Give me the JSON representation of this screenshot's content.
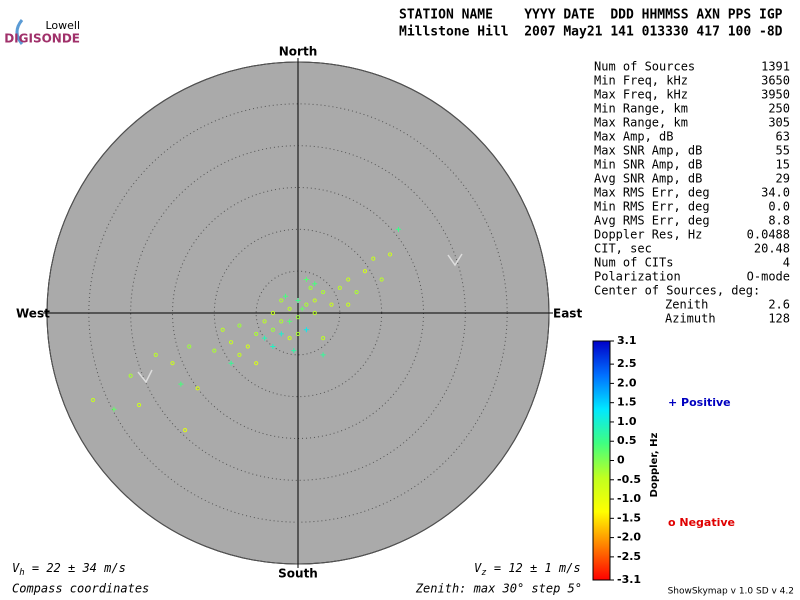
{
  "logo": {
    "top": "Lowell",
    "bottom": "DIGISONDE"
  },
  "header": {
    "line1": "STATION NAME    YYYY DATE  DDD HHMMSS AXN PPS IGP",
    "line2": "Millstone Hill  2007 May21 141 013330 417 100 -8D"
  },
  "stats": {
    "rows": [
      {
        "label": "Num of Sources",
        "value": "1391"
      },
      {
        "label": "Min Freq, kHz",
        "value": "3650"
      },
      {
        "label": "Max Freq, kHz",
        "value": "3950"
      },
      {
        "label": "Min Range, km",
        "value": "250"
      },
      {
        "label": "Max Range, km",
        "value": "305"
      },
      {
        "label": "Max Amp, dB",
        "value": "63"
      },
      {
        "label": "Max SNR Amp, dB",
        "value": "55"
      },
      {
        "label": "Min SNR Amp, dB",
        "value": "15"
      },
      {
        "label": "Avg SNR Amp, dB",
        "value": "29"
      },
      {
        "label": "Max RMS Err, deg",
        "value": "34.0"
      },
      {
        "label": "Min RMS Err, deg",
        "value": "0.0"
      },
      {
        "label": "Avg RMS Err, deg",
        "value": "8.8"
      },
      {
        "label": "Doppler Res, Hz",
        "value": "0.0488"
      },
      {
        "label": "CIT, sec",
        "value": "20.48"
      },
      {
        "label": "Num of CITs",
        "value": "4"
      },
      {
        "label": "Polarization",
        "value": "O-mode"
      },
      {
        "label": "Center of Sources, deg:"
      },
      {
        "label": "Zenith",
        "value": "2.6",
        "indent": true
      },
      {
        "label": "Azimuth",
        "value": "128",
        "indent": true
      }
    ]
  },
  "footer": {
    "vh_symbol": "V",
    "vh_sub": "h",
    "vh_text": " = 22 ± 34 m/s",
    "vz_symbol": "V",
    "vz_sub": "z",
    "vz_text": " = 12 ± 1 m/s",
    "left": "Compass coordinates",
    "zenith": "Zenith: max 30°  step 5°",
    "version": "ShowSkymap v 1.0  SD v 4.2"
  },
  "chart_data": {
    "type": "skymap",
    "directions": {
      "north": "North",
      "south": "South",
      "east": "East",
      "west": "West"
    },
    "rlim": [
      0,
      30
    ],
    "rticks": [
      5,
      10,
      15,
      20,
      25,
      30
    ],
    "colorbar": {
      "label": "Doppler, Hz",
      "lim": [
        -3.1,
        3.1
      ],
      "colors": [
        "#ff0000",
        "#ff8000",
        "#ffff00",
        "#c0ff20",
        "#40ff80",
        "#00e8ff",
        "#0070ff",
        "#0000c8"
      ],
      "ticks": [
        3.1,
        2.5,
        {
          "value": 2,
          "label": "2.0"
        },
        1.5,
        {
          "value": 1,
          "label": "1.0"
        },
        0.5,
        0,
        -0.5,
        {
          "value": -1,
          "label": "-1.0"
        },
        -1.5,
        {
          "value": -2,
          "label": "-2.0"
        },
        -2.5,
        -3.1
      ]
    },
    "series": [
      {
        "name": "Positive",
        "marker": "plus",
        "color": "#0000c0",
        "x": [
          -22,
          -14,
          -8,
          -4,
          -1,
          0,
          1,
          2,
          -3,
          -0.5,
          3,
          1,
          12,
          -2,
          0.5,
          -1.5
        ],
        "values": [
          -11.5,
          -8.5,
          -6,
          -3,
          -1,
          1.5,
          -2,
          3.5,
          -4,
          -4.5,
          -5,
          4,
          10,
          -2.5,
          0.5,
          2
        ],
        "doppler": [
          0.2,
          0.4,
          0.6,
          0.8,
          0.3,
          0.5,
          1.2,
          0.4,
          0.9,
          0.7,
          0.6,
          0.3,
          0.5,
          1.0,
          0.2,
          0.4
        ]
      },
      {
        "name": "Negative",
        "marker": "circle",
        "color": "#e00000",
        "x": [
          -24.5,
          -20,
          -17,
          -15,
          -13,
          -12,
          -10,
          -9,
          -8,
          -7,
          -6,
          -5,
          -4,
          -3,
          -3,
          -2,
          -1,
          0,
          1,
          2,
          2,
          3,
          4,
          5,
          6,
          7,
          8,
          9,
          10,
          11,
          -13.5,
          -19,
          -7,
          -5,
          0,
          3,
          -1,
          1.5,
          -2,
          6
        ],
        "values": [
          -10.4,
          -7.5,
          -5,
          -6,
          -4,
          -9,
          -4.5,
          -2,
          -3.5,
          -1.5,
          -4,
          -2.5,
          -1,
          -2,
          0,
          -1,
          0.5,
          -0.5,
          1,
          1.5,
          0,
          2.5,
          1,
          3,
          4,
          2.5,
          5,
          6.5,
          4,
          7,
          -14,
          -11,
          -5,
          -6,
          -2.5,
          -3,
          -3,
          3,
          1.5,
          1
        ],
        "doppler": [
          -0.5,
          -0.3,
          -0.4,
          -0.6,
          -0.2,
          -0.8,
          -0.3,
          -0.4,
          -0.5,
          -0.2,
          -0.7,
          -0.3,
          -0.4,
          -0.2,
          -0.5,
          -0.3,
          -0.4,
          -0.2,
          -0.3,
          -0.5,
          -0.4,
          -0.3,
          -0.6,
          -0.4,
          -0.5,
          -0.3,
          -0.7,
          -0.5,
          -0.4,
          -0.6,
          -0.9,
          -0.6,
          -0.5,
          -0.8,
          -0.3,
          -0.4,
          -0.6,
          -0.2,
          -0.3,
          -0.5
        ]
      }
    ]
  }
}
